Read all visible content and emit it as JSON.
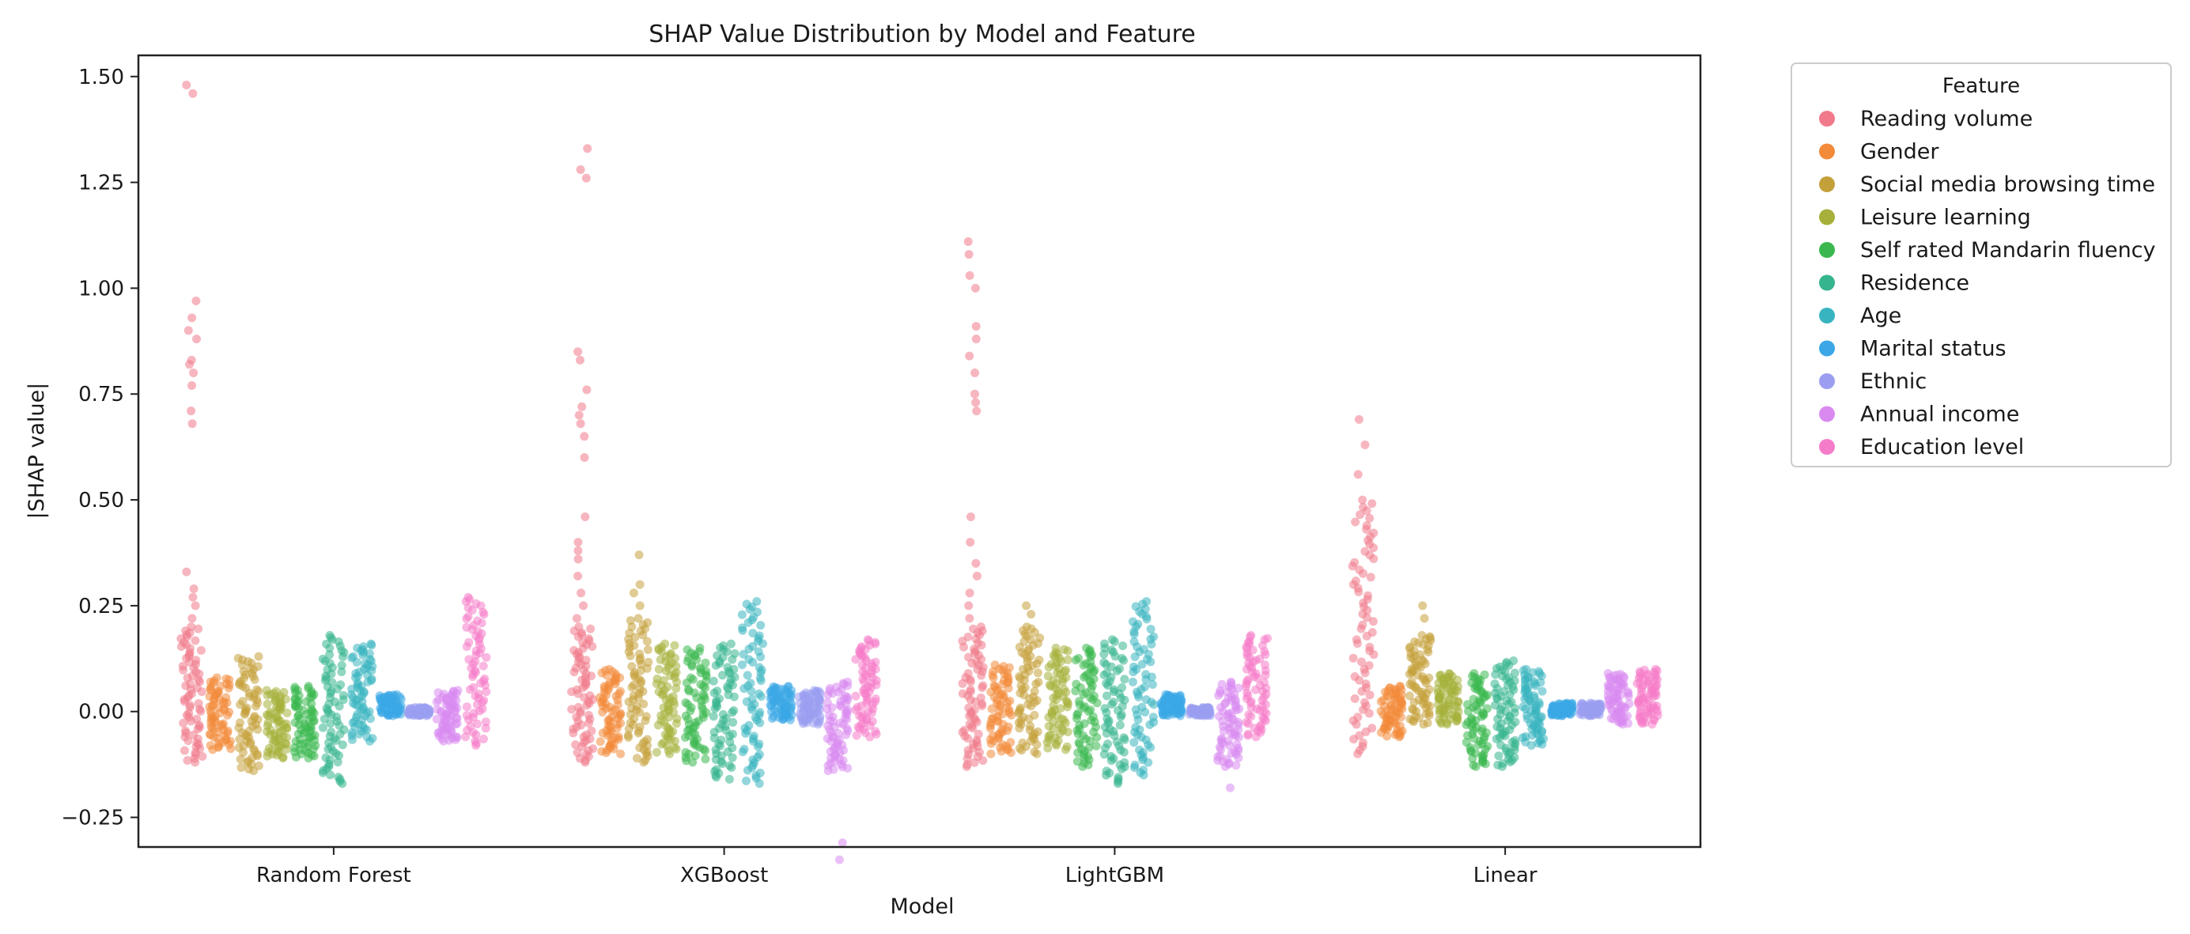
{
  "chart_data": {
    "type": "strip",
    "title": "SHAP Value Distribution by Model and Feature",
    "xlabel": "Model",
    "ylabel": "|SHAP value|",
    "ylim": [
      -0.32,
      1.55
    ],
    "yticks": [
      -0.25,
      0.0,
      0.25,
      0.5,
      0.75,
      1.0,
      1.25,
      1.5
    ],
    "ytick_labels": [
      "−0.25",
      "0.00",
      "0.25",
      "0.50",
      "0.75",
      "1.00",
      "1.25",
      "1.50"
    ],
    "categories": [
      "Random Forest",
      "XGBoost",
      "LightGBM",
      "Linear"
    ],
    "legend": {
      "title": "Feature",
      "placement": "outside-right",
      "entries": [
        "Reading volume",
        "Gender",
        "Social media browsing time",
        "Leisure learning",
        "Self rated Mandarin fluency",
        "Residence",
        "Age",
        "Marital status",
        "Ethnic",
        "Annual income",
        "Education level"
      ]
    },
    "colors": [
      "#f07a8a",
      "#f28b3a",
      "#c4a03a",
      "#a6b03a",
      "#3ab84e",
      "#35b48e",
      "#38b4c0",
      "#3ba7e6",
      "#9b9ef0",
      "#d98af0",
      "#f57cc8"
    ],
    "series": [
      {
        "name": "Reading volume",
        "ranges": [
          {
            "min": -0.12,
            "max": 0.2,
            "outliers": [
              0.22,
              0.25,
              0.27,
              0.29,
              0.33,
              0.68,
              0.71,
              0.77,
              0.8,
              0.82,
              0.83,
              0.88,
              0.9,
              0.93,
              0.97,
              1.46,
              1.48
            ]
          },
          {
            "min": -0.12,
            "max": 0.2,
            "outliers": [
              0.22,
              0.25,
              0.28,
              0.32,
              0.36,
              0.38,
              0.4,
              0.46,
              0.6,
              0.65,
              0.68,
              0.7,
              0.72,
              0.76,
              0.83,
              0.85,
              1.26,
              1.28,
              1.33
            ]
          },
          {
            "min": -0.13,
            "max": 0.2,
            "outliers": [
              0.22,
              0.25,
              0.28,
              0.32,
              0.35,
              0.4,
              0.46,
              0.71,
              0.73,
              0.75,
              0.8,
              0.84,
              0.88,
              0.91,
              1.0,
              1.03,
              1.08,
              1.11
            ]
          },
          {
            "min": -0.1,
            "max": 0.5,
            "outliers": [
              0.56,
              0.63,
              0.69
            ]
          }
        ]
      },
      {
        "name": "Gender",
        "ranges": [
          {
            "min": -0.09,
            "max": 0.08,
            "outliers": []
          },
          {
            "min": -0.1,
            "max": 0.1,
            "outliers": []
          },
          {
            "min": -0.1,
            "max": 0.11,
            "outliers": []
          },
          {
            "min": -0.06,
            "max": 0.06,
            "outliers": []
          }
        ]
      },
      {
        "name": "Social media browsing time",
        "ranges": [
          {
            "min": -0.14,
            "max": 0.13,
            "outliers": []
          },
          {
            "min": -0.12,
            "max": 0.22,
            "outliers": [
              0.25,
              0.28,
              0.3,
              0.37
            ]
          },
          {
            "min": -0.1,
            "max": 0.2,
            "outliers": [
              0.23,
              0.25
            ]
          },
          {
            "min": -0.03,
            "max": 0.18,
            "outliers": [
              0.22,
              0.25
            ]
          }
        ]
      },
      {
        "name": "Leisure learning",
        "ranges": [
          {
            "min": -0.11,
            "max": 0.05,
            "outliers": []
          },
          {
            "min": -0.1,
            "max": 0.16,
            "outliers": []
          },
          {
            "min": -0.09,
            "max": 0.15,
            "outliers": []
          },
          {
            "min": -0.03,
            "max": 0.09,
            "outliers": []
          }
        ]
      },
      {
        "name": "Self rated Mandarin fluency",
        "ranges": [
          {
            "min": -0.11,
            "max": 0.06,
            "outliers": []
          },
          {
            "min": -0.12,
            "max": 0.15,
            "outliers": []
          },
          {
            "min": -0.13,
            "max": 0.15,
            "outliers": []
          },
          {
            "min": -0.13,
            "max": 0.09,
            "outliers": []
          }
        ]
      },
      {
        "name": "Residence",
        "ranges": [
          {
            "min": -0.17,
            "max": 0.18,
            "outliers": []
          },
          {
            "min": -0.16,
            "max": 0.16,
            "outliers": []
          },
          {
            "min": -0.17,
            "max": 0.17,
            "outliers": []
          },
          {
            "min": -0.13,
            "max": 0.12,
            "outliers": []
          }
        ]
      },
      {
        "name": "Age",
        "ranges": [
          {
            "min": -0.07,
            "max": 0.16,
            "outliers": []
          },
          {
            "min": -0.17,
            "max": 0.26,
            "outliers": []
          },
          {
            "min": -0.15,
            "max": 0.26,
            "outliers": []
          },
          {
            "min": -0.08,
            "max": 0.1,
            "outliers": []
          }
        ]
      },
      {
        "name": "Marital status",
        "ranges": [
          {
            "min": -0.01,
            "max": 0.04,
            "outliers": []
          },
          {
            "min": -0.02,
            "max": 0.06,
            "outliers": []
          },
          {
            "min": -0.01,
            "max": 0.04,
            "outliers": []
          },
          {
            "min": -0.01,
            "max": 0.02,
            "outliers": []
          }
        ]
      },
      {
        "name": "Ethnic",
        "ranges": [
          {
            "min": -0.01,
            "max": 0.01,
            "outliers": []
          },
          {
            "min": -0.03,
            "max": 0.05,
            "outliers": []
          },
          {
            "min": -0.01,
            "max": 0.01,
            "outliers": []
          },
          {
            "min": -0.01,
            "max": 0.02,
            "outliers": []
          }
        ]
      },
      {
        "name": "Annual income",
        "ranges": [
          {
            "min": -0.07,
            "max": 0.05,
            "outliers": []
          },
          {
            "min": -0.14,
            "max": 0.07,
            "outliers": [
              -0.31,
              -0.35
            ]
          },
          {
            "min": -0.13,
            "max": 0.07,
            "outliers": [
              -0.18
            ]
          },
          {
            "min": -0.03,
            "max": 0.09,
            "outliers": []
          }
        ]
      },
      {
        "name": "Education level",
        "ranges": [
          {
            "min": -0.08,
            "max": 0.27,
            "outliers": []
          },
          {
            "min": -0.06,
            "max": 0.17,
            "outliers": []
          },
          {
            "min": -0.06,
            "max": 0.18,
            "outliers": []
          },
          {
            "min": -0.03,
            "max": 0.1,
            "outliers": []
          }
        ]
      }
    ]
  }
}
